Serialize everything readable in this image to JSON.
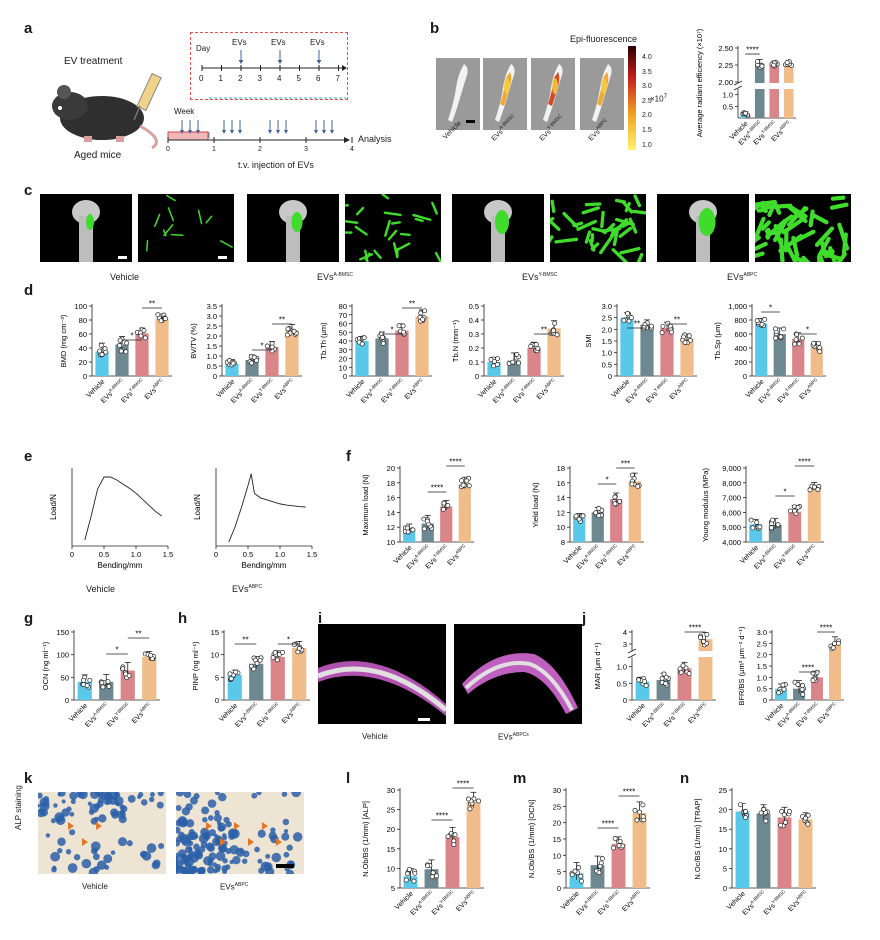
{
  "panel_letters": {
    "a": "a",
    "b": "b",
    "c": "c",
    "d": "d",
    "e": "e",
    "f": "f",
    "g": "g",
    "h": "h",
    "i": "i",
    "j": "j",
    "k": "k",
    "l": "l",
    "m": "m",
    "n": "n"
  },
  "panel_a": {
    "ev_treatment": "EV treatment",
    "aged_mice": "Aged mice",
    "day_label": "Day",
    "day_ticks": [
      "0",
      "1",
      "2",
      "3",
      "4",
      "5",
      "6",
      "7"
    ],
    "evs_marks": [
      "EVs",
      "EVs",
      "EVs"
    ],
    "week_label": "Week",
    "week_ticks": [
      "0",
      "1",
      "2",
      "3",
      "4"
    ],
    "analysis": "Analysis",
    "injection": "t.v. injection of EVs"
  },
  "panel_b": {
    "colorbar_title": "Epi-fluorescence",
    "colorbar_ticks": [
      "4.0",
      "3.5",
      "3.0",
      "2.5",
      "2.0",
      "1.5",
      "1.0"
    ],
    "colorbar_unit": "×10",
    "colorbar_exp": "7",
    "image_labels": [
      "Vehicle",
      "EVs",
      "EVs",
      "EVs"
    ],
    "image_label_sups": [
      "",
      "A-BMSC",
      "Y-BMSC",
      "ABPC"
    ]
  },
  "panel_c": {
    "captions": [
      "Vehicle",
      "EVs",
      "EVs",
      "EVs"
    ],
    "caption_sups": [
      "",
      "A-BMSC",
      "Y-BMSC",
      "ABPC"
    ]
  },
  "panel_e": {
    "captions": [
      "Vehicle",
      "EVs"
    ],
    "caption_sups": [
      "",
      "ABPC"
    ]
  },
  "panel_i": {
    "captions": [
      "Vehicle",
      "EVs"
    ],
    "caption_sups": [
      "",
      "ABPCs"
    ]
  },
  "panel_k": {
    "ylabel": "ALP staining",
    "captions": [
      "Vehicle",
      "EVs"
    ],
    "caption_sups": [
      "",
      "ABPC"
    ]
  },
  "group_names": [
    "Vehicle",
    "EVs",
    "EVs",
    "EVs"
  ],
  "group_sups": [
    "",
    "A-BMSC",
    "Y-BMSC",
    "ABPC"
  ],
  "colors": {
    "vehicle": "#5ac8e8",
    "a_bmsc": "#6e8892",
    "y_bmsc": "#d9858a",
    "abpc": "#efbc8a"
  },
  "chart_data": [
    {
      "id": "b",
      "type": "bar",
      "ylabel": "Average radiant efficiency (×10⁷)",
      "yticks": [
        "0.5",
        "1.0",
        "2.00",
        "2.25",
        "2.50"
      ],
      "values": [
        0.17,
        2.27,
        2.27,
        2.27
      ],
      "significance": [
        {
          "from": 0,
          "to": 1,
          "label": "****"
        }
      ]
    },
    {
      "id": "d1",
      "type": "bar",
      "ylabel": "BMD (mg cm⁻³)",
      "ylim": [
        0,
        100
      ],
      "yticks": [
        "0",
        "20",
        "40",
        "60",
        "80",
        "100"
      ],
      "values": [
        35,
        45,
        61,
        82
      ],
      "significance": [
        {
          "from": 1,
          "to": 2,
          "label": "*"
        },
        {
          "from": 2,
          "to": 3,
          "label": "**"
        }
      ]
    },
    {
      "id": "d2",
      "type": "bar",
      "ylabel": "BV/TV (%)",
      "ylim": [
        0,
        3.5
      ],
      "yticks": [
        "0",
        "0.5",
        "1.0",
        "1.5",
        "2.0",
        "2.5",
        "3.0",
        "3.5"
      ],
      "values": [
        0.6,
        0.8,
        1.45,
        2.3
      ],
      "significance": [
        {
          "from": 1,
          "to": 2,
          "label": "*"
        },
        {
          "from": 2,
          "to": 3,
          "label": "**"
        }
      ]
    },
    {
      "id": "d3",
      "type": "bar",
      "ylabel": "Tb.Th (μm)",
      "ylim": [
        0,
        80
      ],
      "yticks": [
        "0",
        "10",
        "20",
        "30",
        "40",
        "50",
        "60",
        "70",
        "80"
      ],
      "values": [
        40,
        43,
        52,
        68
      ],
      "significance": [
        {
          "from": 1,
          "to": 2,
          "label": "*"
        },
        {
          "from": 2,
          "to": 3,
          "label": "**"
        }
      ]
    },
    {
      "id": "d4",
      "type": "bar",
      "ylabel": "Tb.N (mm⁻¹)",
      "ylim": [
        0,
        0.5
      ],
      "yticks": [
        "0",
        "0.1",
        "0.2",
        "0.3",
        "0.4",
        "0.5"
      ],
      "values": [
        0.1,
        0.11,
        0.2,
        0.34
      ],
      "significance": [
        {
          "from": 2,
          "to": 3,
          "label": "**"
        }
      ]
    },
    {
      "id": "d5",
      "type": "bar",
      "ylabel": "SMI",
      "ylim": [
        0,
        3.0
      ],
      "yticks": [
        "0",
        "0.5",
        "1.0",
        "1.5",
        "2.0",
        "2.5",
        "3.0"
      ],
      "values": [
        2.5,
        2.2,
        2.05,
        1.6
      ],
      "significance": [
        {
          "from": 0,
          "to": 1,
          "label": "**"
        },
        {
          "from": 2,
          "to": 3,
          "label": "**"
        }
      ]
    },
    {
      "id": "d6",
      "type": "bar",
      "ylabel": "Tb.Sp (μm)",
      "ylim": [
        0,
        1000
      ],
      "yticks": [
        "0",
        "200",
        "400",
        "600",
        "800",
        "1,000"
      ],
      "values": [
        750,
        600,
        530,
        410
      ],
      "significance": [
        {
          "from": 0,
          "to": 1,
          "label": "*"
        },
        {
          "from": 2,
          "to": 3,
          "label": "*"
        }
      ]
    },
    {
      "id": "e1",
      "type": "line",
      "xlabel": "Bending/mm",
      "ylabel": "Load/N",
      "xticks": [
        "0",
        "0.5",
        "1.0",
        "1.5"
      ],
      "x": [
        0.2,
        0.3,
        0.4,
        0.5,
        0.6,
        0.7,
        0.8,
        0.9,
        1.0,
        1.1,
        1.2,
        1.3,
        1.4
      ],
      "y": [
        1,
        5,
        9.5,
        11.5,
        11.5,
        11,
        10.3,
        9.6,
        8.8,
        7.8,
        6.8,
        5.8,
        5
      ]
    },
    {
      "id": "e2",
      "type": "line",
      "xlabel": "Bending/mm",
      "ylabel": "Load/N",
      "xticks": [
        "0",
        "0.5",
        "1.0",
        "1.5"
      ],
      "x": [
        0.2,
        0.3,
        0.4,
        0.5,
        0.55,
        0.6,
        0.7,
        0.8,
        0.9,
        1.0,
        1.1,
        1.2,
        1.3,
        1.4
      ],
      "y": [
        1,
        5,
        10,
        15.5,
        18.5,
        13.5,
        12.3,
        11.8,
        11.3,
        10.8,
        10.5,
        10.3,
        10.1,
        10
      ]
    },
    {
      "id": "f1",
      "type": "bar",
      "ylabel": "Maximum load (N)",
      "ylim": [
        10,
        20
      ],
      "yticks": [
        "10",
        "12",
        "14",
        "16",
        "18",
        "20"
      ],
      "values": [
        11.8,
        12.5,
        14.8,
        17.8
      ],
      "significance": [
        {
          "from": 1,
          "to": 2,
          "label": "****"
        },
        {
          "from": 2,
          "to": 3,
          "label": "****"
        }
      ]
    },
    {
      "id": "f2",
      "type": "bar",
      "ylabel": "Yield load (N)",
      "ylim": [
        8,
        18
      ],
      "yticks": [
        "8",
        "10",
        "12",
        "14",
        "16",
        "18"
      ],
      "values": [
        11.2,
        12,
        13.8,
        16.2
      ],
      "significance": [
        {
          "from": 1,
          "to": 2,
          "label": "*"
        },
        {
          "from": 2,
          "to": 3,
          "label": "***"
        }
      ]
    },
    {
      "id": "f3",
      "type": "bar",
      "ylabel": "Young modulus (MPa)",
      "ylim": [
        4000,
        9000
      ],
      "yticks": [
        "4,000",
        "5,000",
        "6,000",
        "7,000",
        "8,000",
        "9,000"
      ],
      "values": [
        5200,
        5150,
        6050,
        7700
      ],
      "significance": [
        {
          "from": 1,
          "to": 2,
          "label": "*"
        },
        {
          "from": 2,
          "to": 3,
          "label": "****"
        }
      ]
    },
    {
      "id": "g",
      "type": "bar",
      "ylabel": "OCN (ng ml⁻¹)",
      "ylim": [
        0,
        150
      ],
      "yticks": [
        "0",
        "50",
        "100",
        "150"
      ],
      "values": [
        40,
        40,
        65,
        95
      ],
      "significance": [
        {
          "from": 1,
          "to": 2,
          "label": "*"
        },
        {
          "from": 2,
          "to": 3,
          "label": "**"
        }
      ]
    },
    {
      "id": "h",
      "type": "bar",
      "ylabel": "PINP (ng ml⁻¹)",
      "ylim": [
        0,
        15
      ],
      "yticks": [
        "0",
        "5",
        "10",
        "15"
      ],
      "values": [
        5.5,
        8,
        9.5,
        11.5
      ],
      "significance": [
        {
          "from": 0,
          "to": 1,
          "label": "**"
        },
        {
          "from": 2,
          "to": 3,
          "label": "*"
        }
      ]
    },
    {
      "id": "j1",
      "type": "bar",
      "ylabel": "MAR (μm d⁻¹)",
      "yticks": [
        "0",
        "0.5",
        "1.0",
        "3",
        "4"
      ],
      "values": [
        0.55,
        0.6,
        0.95,
        3.4
      ],
      "significance": [
        {
          "from": 2,
          "to": 3,
          "label": "****"
        }
      ]
    },
    {
      "id": "j2",
      "type": "bar",
      "ylabel": "BFR/BS (μm³ μm⁻² d⁻¹)",
      "yticks": [
        "0",
        "0.5",
        "1.0",
        "1.5",
        "2.0",
        "2.5",
        "3.0"
      ],
      "values": [
        0.5,
        0.5,
        1.0,
        2.45
      ],
      "significance": [
        {
          "from": 1,
          "to": 2,
          "label": "****"
        },
        {
          "from": 2,
          "to": 3,
          "label": "****"
        }
      ]
    },
    {
      "id": "l",
      "type": "bar",
      "ylabel": "N.Ob/BS (1/mm) [ALP]",
      "ylim": [
        5,
        30
      ],
      "yticks": [
        "5",
        "10",
        "15",
        "20",
        "25",
        "30"
      ],
      "values": [
        8,
        9.8,
        18,
        27
      ],
      "significance": [
        {
          "from": 1,
          "to": 2,
          "label": "****"
        },
        {
          "from": 2,
          "to": 3,
          "label": "****"
        }
      ]
    },
    {
      "id": "m",
      "type": "bar",
      "ylabel": "N.Ob/BS (1/mm) [OCN]",
      "ylim": [
        0,
        30
      ],
      "yticks": [
        "0",
        "5",
        "10",
        "15",
        "20",
        "25",
        "30"
      ],
      "values": [
        4.5,
        7,
        13.5,
        23
      ],
      "significance": [
        {
          "from": 1,
          "to": 2,
          "label": "****"
        },
        {
          "from": 2,
          "to": 3,
          "label": "****"
        }
      ]
    },
    {
      "id": "n",
      "type": "bar",
      "ylabel": "N.Oc/BS (1/mm) [TRAP]",
      "ylim": [
        0,
        25
      ],
      "yticks": [
        "0",
        "5",
        "10",
        "15",
        "20",
        "25"
      ],
      "values": [
        19.5,
        19,
        18,
        17.5
      ],
      "significance": []
    }
  ]
}
